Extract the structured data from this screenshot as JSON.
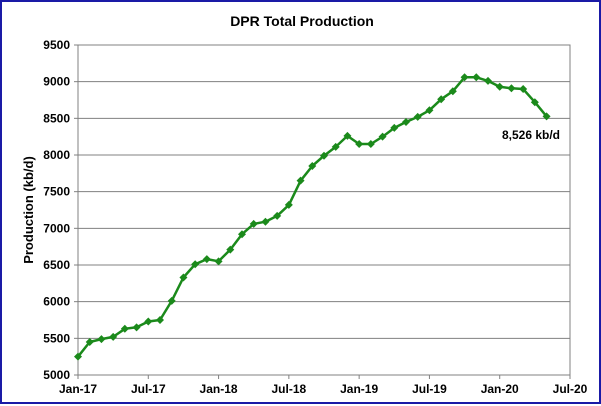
{
  "chart_data": {
    "type": "line",
    "title": "DPR Total  Production",
    "ylabel": "Production (kb/d)",
    "xlabel": "",
    "ylim": [
      5000,
      9500
    ],
    "yticks": [
      "5000",
      "5500",
      "6000",
      "6500",
      "7000",
      "7500",
      "8000",
      "8500",
      "9000",
      "9500"
    ],
    "xticks": [
      "Jan-17",
      "Jul-17",
      "Jan-18",
      "Jul-18",
      "Jan-19",
      "Jul-19",
      "Jan-20",
      "Jul-20"
    ],
    "xlim": [
      "Jan-17",
      "Jul-20"
    ],
    "grid": "horizontal",
    "legend": "none",
    "series_color": "#1b8a1b",
    "annotation": "8,526 kb/d",
    "series": [
      {
        "x": [
          "Jan-17",
          "Feb-17",
          "Mar-17",
          "Apr-17",
          "May-17",
          "Jun-17",
          "Jul-17",
          "Aug-17",
          "Sep-17",
          "Oct-17",
          "Nov-17",
          "Dec-17",
          "Jan-18",
          "Feb-18",
          "Mar-18",
          "Apr-18",
          "May-18",
          "Jun-18",
          "Jul-18",
          "Aug-18",
          "Sep-18",
          "Oct-18",
          "Nov-18",
          "Dec-18",
          "Jan-19",
          "Feb-19",
          "Mar-19",
          "Apr-19",
          "May-19",
          "Jun-19",
          "Jul-19",
          "Aug-19",
          "Sep-19",
          "Oct-19",
          "Nov-19",
          "Dec-19",
          "Jan-20",
          "Feb-20",
          "Mar-20",
          "Apr-20",
          "May-20"
        ],
        "values": [
          5250,
          5450,
          5490,
          5520,
          5630,
          5650,
          5730,
          5750,
          6010,
          6330,
          6510,
          6580,
          6550,
          6710,
          6920,
          7060,
          7090,
          7170,
          7320,
          7650,
          7850,
          7990,
          8110,
          8260,
          8150,
          8150,
          8250,
          8370,
          8450,
          8520,
          8610,
          8760,
          8870,
          9060,
          9060,
          9010,
          8930,
          8910,
          8900,
          8720,
          8526
        ]
      }
    ]
  }
}
